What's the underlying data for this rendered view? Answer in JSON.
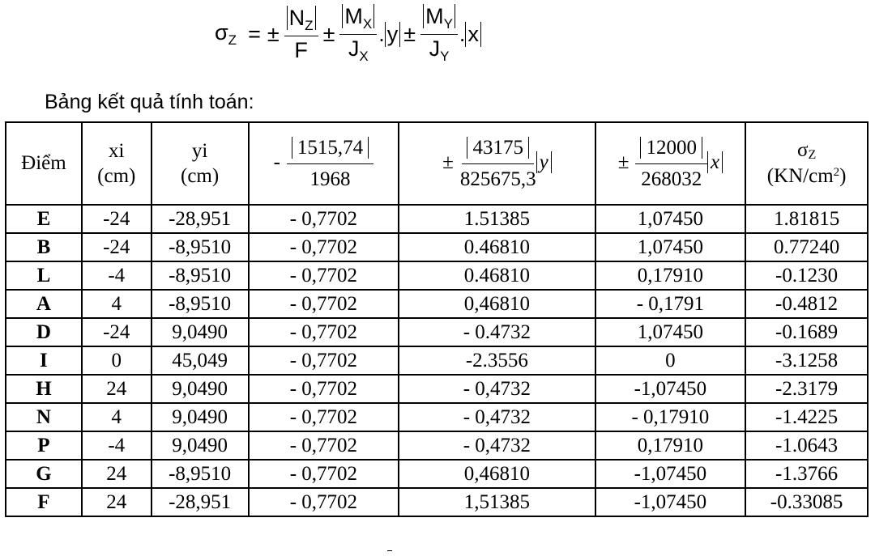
{
  "formula": {
    "lhs": "σ",
    "lhs_sub": "Z",
    "eq": "=",
    "pm": "±",
    "dot": ".",
    "t1_num": "N",
    "t1_num_sub": "Z",
    "t1_den": "F",
    "t2_num": "M",
    "t2_num_sub": "X",
    "t2_den": "J",
    "t2_den_sub": "X",
    "t2_var": "y",
    "t3_num": "M",
    "t3_num_sub": "Y",
    "t3_den": "J",
    "t3_den_sub": "Y",
    "t3_var": "x"
  },
  "heading": "Bảng kết quả tính toán:",
  "table": {
    "headers": {
      "point": "Điểm",
      "xi": "xi",
      "xi_unit": "(cm)",
      "yi": "yi",
      "yi_unit": "(cm)",
      "c4_sign": "-",
      "c4_num": "1515,74",
      "c4_den": "1968",
      "c5_sign": "±",
      "c5_num": "43175",
      "c5_den": "825675,3",
      "c5_var": "y",
      "c6_sign": "±",
      "c6_num": "12000",
      "c6_den": "268032",
      "c6_var": "x",
      "sigma": "σ",
      "sigma_sub": "Z",
      "sigma_unit_pre": "(KN/cm",
      "sigma_unit_sup": "2",
      "sigma_unit_post": ")"
    },
    "rows": [
      {
        "point": "E",
        "xi": "-24",
        "yi": "-28,951",
        "c4": "- 0,7702",
        "c5": "1.51385",
        "c6": "1,07450",
        "sigma": "1.81815"
      },
      {
        "point": "B",
        "xi": "-24",
        "yi": "-8,9510",
        "c4": "- 0,7702",
        "c5": "0.46810",
        "c6": "1,07450",
        "sigma": "0.77240"
      },
      {
        "point": "L",
        "xi": "-4",
        "yi": "-8,9510",
        "c4": "- 0,7702",
        "c5": "0.46810",
        "c6": "0,17910",
        "sigma": "-0.1230"
      },
      {
        "point": "A",
        "xi": "4",
        "yi": "-8,9510",
        "c4": "- 0,7702",
        "c5": "0,46810",
        "c6": "- 0,1791",
        "sigma": "-0.4812"
      },
      {
        "point": "D",
        "xi": "-24",
        "yi": "9,0490",
        "c4": "- 0,7702",
        "c5": "- 0.4732",
        "c6": "1,07450",
        "sigma": "-0.1689"
      },
      {
        "point": "I",
        "xi": "0",
        "yi": "45,049",
        "c4": "- 0,7702",
        "c5": "-2.3556",
        "c6": "0",
        "sigma": "-3.1258"
      },
      {
        "point": "H",
        "xi": "24",
        "yi": "9,0490",
        "c4": "- 0,7702",
        "c5": "- 0,4732",
        "c6": "-1,07450",
        "sigma": "-2.3179"
      },
      {
        "point": "N",
        "xi": "4",
        "yi": "9,0490",
        "c4": "- 0,7702",
        "c5": "- 0,4732",
        "c6": "- 0,17910",
        "sigma": "-1.4225"
      },
      {
        "point": "P",
        "xi": "-4",
        "yi": "9,0490",
        "c4": "- 0,7702",
        "c5": "- 0,4732",
        "c6": "0,17910",
        "sigma": "-1.0643"
      },
      {
        "point": "G",
        "xi": "24",
        "yi": "-8,9510",
        "c4": "- 0,7702",
        "c5": "0,46810",
        "c6": "-1,07450",
        "sigma": "-1.3766"
      },
      {
        "point": "F",
        "xi": "24",
        "yi": "-28,951",
        "c4": "- 0,7702",
        "c5": "1,51385",
        "c6": "-1,07450",
        "sigma": "-0.33085"
      }
    ]
  }
}
